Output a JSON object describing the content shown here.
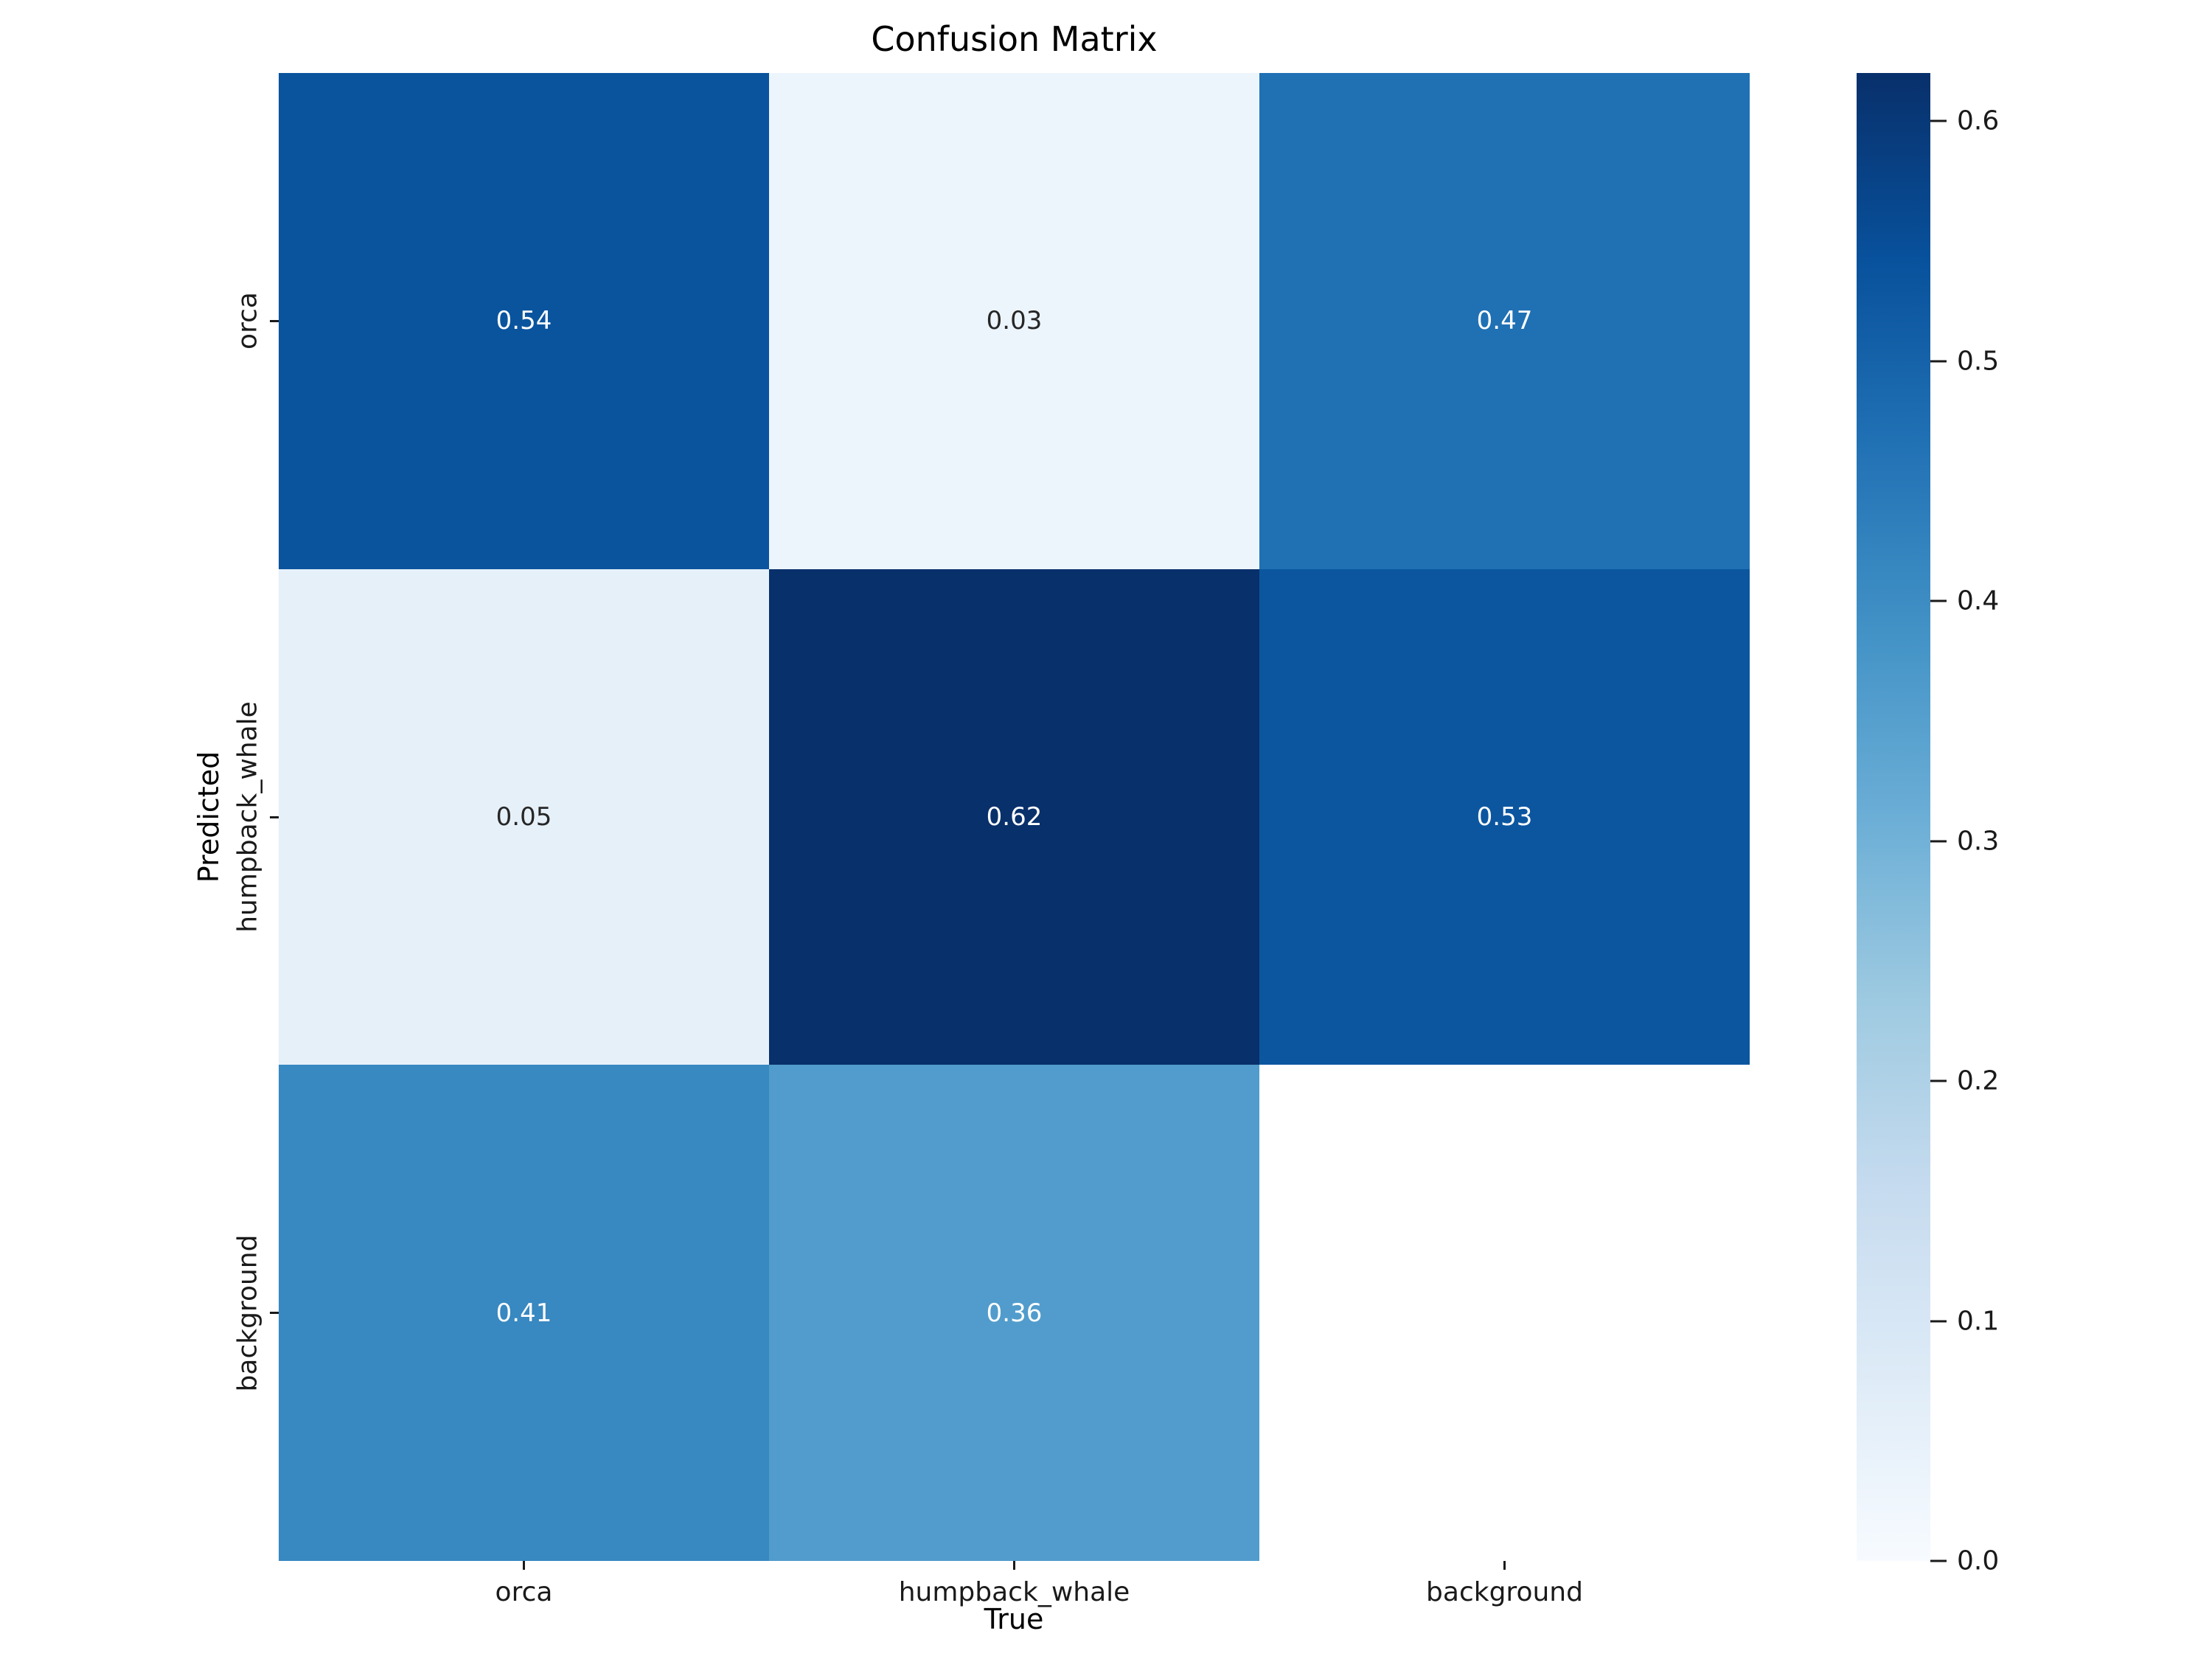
{
  "chart_data": {
    "type": "heatmap",
    "title": "Confusion Matrix",
    "xlabel": "True",
    "ylabel": "Predicted",
    "x_categories": [
      "orca",
      "humpback_whale",
      "background"
    ],
    "y_categories": [
      "orca",
      "humpback_whale",
      "background"
    ],
    "matrix": [
      [
        0.54,
        0.03,
        0.47
      ],
      [
        0.05,
        0.62,
        0.53
      ],
      [
        0.41,
        0.36,
        null
      ]
    ],
    "cells": [
      {
        "row": 0,
        "col": 0,
        "label": "0.54",
        "bg": "#0a549e",
        "fg": "#ffffff"
      },
      {
        "row": 0,
        "col": 1,
        "label": "0.03",
        "bg": "#edf5fc",
        "fg": "#262626"
      },
      {
        "row": 0,
        "col": 2,
        "label": "0.47",
        "bg": "#2070b4",
        "fg": "#ffffff"
      },
      {
        "row": 1,
        "col": 0,
        "label": "0.05",
        "bg": "#e6f0f9",
        "fg": "#262626"
      },
      {
        "row": 1,
        "col": 1,
        "label": "0.62",
        "bg": "#08306b",
        "fg": "#ffffff"
      },
      {
        "row": 1,
        "col": 2,
        "label": "0.53",
        "bg": "#0c56a0",
        "fg": "#ffffff"
      },
      {
        "row": 2,
        "col": 0,
        "label": "0.41",
        "bg": "#3888c1",
        "fg": "#ffffff"
      },
      {
        "row": 2,
        "col": 1,
        "label": "0.36",
        "bg": "#519ccc",
        "fg": "#ffffff"
      },
      {
        "row": 2,
        "col": 2,
        "label": null,
        "bg": "#ffffff",
        "fg": "#262626"
      }
    ],
    "colormap": "Blues",
    "vmin": 0.0,
    "vmax": 0.62,
    "grid": false,
    "legend_position": "right-colorbar",
    "colorbar": {
      "ticks": [
        {
          "value": 0.6,
          "label": "0.6"
        },
        {
          "value": 0.5,
          "label": "0.5"
        },
        {
          "value": 0.4,
          "label": "0.4"
        },
        {
          "value": 0.3,
          "label": "0.3"
        },
        {
          "value": 0.2,
          "label": "0.2"
        },
        {
          "value": 0.1,
          "label": "0.1"
        },
        {
          "value": 0.0,
          "label": "0.0"
        }
      ],
      "gradient_stops_top_to_bottom": [
        {
          "pct": 0,
          "color": "#08306b"
        },
        {
          "pct": 12.5,
          "color": "#08519c"
        },
        {
          "pct": 25,
          "color": "#2171b5"
        },
        {
          "pct": 37.5,
          "color": "#4292c6"
        },
        {
          "pct": 50,
          "color": "#6baed6"
        },
        {
          "pct": 62.5,
          "color": "#9ecae1"
        },
        {
          "pct": 75,
          "color": "#c6dbef"
        },
        {
          "pct": 87.5,
          "color": "#deebf7"
        },
        {
          "pct": 100,
          "color": "#f7fbff"
        }
      ]
    }
  }
}
